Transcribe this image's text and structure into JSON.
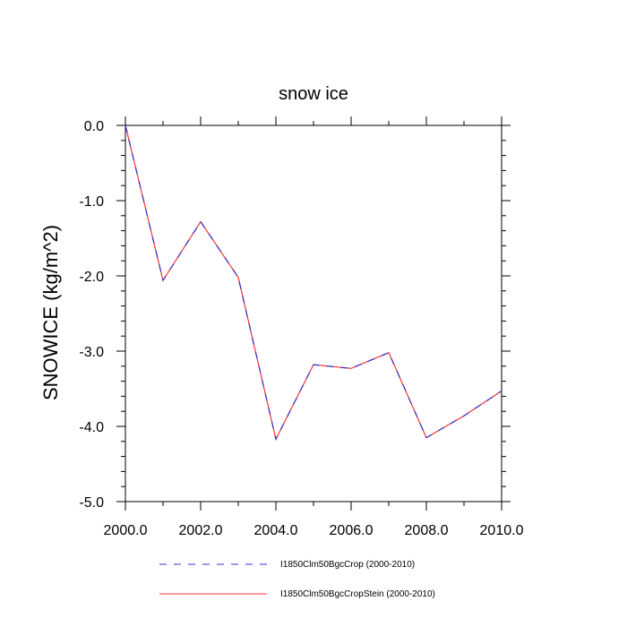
{
  "chart_data": {
    "type": "line",
    "title": "snow ice",
    "xlabel": "",
    "ylabel": "SNOWICE  (kg/m^2)",
    "xlim": [
      2000,
      2010
    ],
    "ylim": [
      -5,
      0
    ],
    "x_ticks": [
      2000,
      2002,
      2004,
      2006,
      2008,
      2010
    ],
    "x_tick_labels": [
      "2000.0",
      "2002.0",
      "2004.0",
      "2006.0",
      "2008.0",
      "2010.0"
    ],
    "x_minor_ticks": [
      2001,
      2003,
      2005,
      2007,
      2009
    ],
    "y_ticks": [
      0,
      -1,
      -2,
      -3,
      -4,
      -5
    ],
    "y_tick_labels": [
      "0.0",
      "-1.0",
      "-2.0",
      "-3.0",
      "-4.0",
      "-5.0"
    ],
    "y_minor_step": 0.2,
    "grid": false,
    "legend_position": "bottom",
    "x": [
      2000,
      2001,
      2002,
      2003,
      2004,
      2005,
      2006,
      2007,
      2008,
      2009,
      2010
    ],
    "series": [
      {
        "name": "I1850Clm50BgcCrop (2000-2010)",
        "color": "#3333cc",
        "style": "dashed",
        "values": [
          0.0,
          -2.06,
          -1.28,
          -2.02,
          -4.17,
          -3.18,
          -3.23,
          -3.02,
          -4.15,
          -3.86,
          -3.53
        ]
      },
      {
        "name": "I1850Clm50BgcCropStein (2000-2010)",
        "color": "#ff3333",
        "style": "solid",
        "values": [
          0.0,
          -2.06,
          -1.28,
          -2.02,
          -4.17,
          -3.18,
          -3.23,
          -3.02,
          -4.15,
          -3.86,
          -3.53
        ]
      }
    ]
  }
}
